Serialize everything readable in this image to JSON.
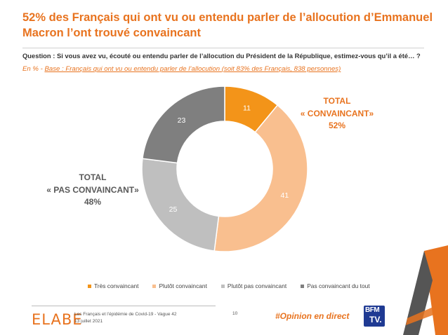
{
  "header": {
    "title": "52% des Français qui ont vu ou entendu parler de l’allocution d’Emmanuel Macron l’ont trouvé convaincant",
    "question": "Question : Si vous avez vu, écouté ou entendu parler de l’allocution du Président de la République, estimez-vous qu’il a été… ?",
    "base_prefix": "En % - ",
    "base": "Base : Français qui ont vu ou entendu parler de l’allocution (soit 83% des Français, 838 personnes)"
  },
  "totals": {
    "convaincant": {
      "line1": "TOTAL",
      "line2": "« CONVAINCANT»",
      "line3": "52%"
    },
    "pas_convaincant": {
      "line1": "TOTAL",
      "line2": "« PAS CONVAINCANT»",
      "line3": "48%"
    }
  },
  "chart_data": {
    "type": "pie",
    "donut": true,
    "categories": [
      "Très convaincant",
      "Plutôt convaincant",
      "Plutôt pas convaincant",
      "Pas convaincant du tout"
    ],
    "values": [
      11,
      41,
      25,
      23
    ],
    "colors": [
      "#F39419",
      "#F9BF8F",
      "#BFBFBF",
      "#7F7F7F"
    ],
    "label_colors": [
      "#ffffff",
      "#ffffff",
      "#ffffff",
      "#ffffff"
    ],
    "legend_position": "bottom"
  },
  "footer": {
    "logo": "ELABE",
    "source_line1": "Les Français et l’épidémie de Covid-19 - Vague 42",
    "source_line2": "13 juillet 2021",
    "page": "10",
    "hashtag": "#Opinion en direct",
    "partner_line1": "BFM",
    "partner_line2": "TV."
  },
  "colors": {
    "accent": "#E8731F",
    "dark_accent": "#4a4a4a"
  }
}
